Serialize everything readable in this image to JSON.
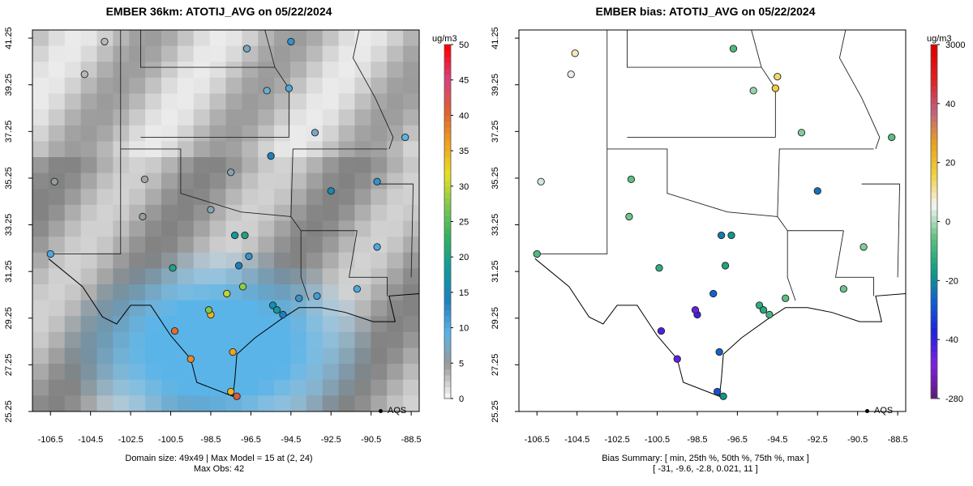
{
  "left_panel": {
    "title": "EMBER 36km: ATOTIJ_AVG on 05/22/2024",
    "footer_line1": "Domain size: 49x49 | Max Model = 15 at (2, 24)",
    "footer_line2": "Max Obs: 42",
    "legend_label": "AQS",
    "colorbar": {
      "unit": "ug/m3",
      "labels": [
        "0",
        "5",
        "10",
        "15",
        "20",
        "25",
        "30",
        "35",
        "40",
        "45",
        "50"
      ],
      "colors": [
        "#f2f2f2",
        "#9a9a9a",
        "#5ab4e8",
        "#1c7fc0",
        "#0e9aa0",
        "#31b060",
        "#7ec850",
        "#e8e020",
        "#f0a020",
        "#e06030",
        "#d84080",
        "#ff0000"
      ]
    }
  },
  "right_panel": {
    "title": "EMBER bias: ATOTIJ_AVG on 05/22/2024",
    "footer_line1": "Bias Summary: [ min, 25th %, 50th %, 75th %, max ]",
    "footer_line2": "[ -31,   -9.6,   -2.8,   0.021,   11 ]",
    "legend_label": "AQS",
    "colorbar": {
      "unit": "ug/m3",
      "labels": [
        "3000",
        "40",
        "20",
        "0",
        "-20",
        "-40",
        "-280"
      ],
      "colors": [
        "#e00000",
        "#e02020",
        "#c06080",
        "#e8a020",
        "#f0d040",
        "#f4f4f4",
        "#60c080",
        "#10a080",
        "#1060d0",
        "#2020e0",
        "#8020e0",
        "#601880"
      ]
    }
  },
  "axes": {
    "x_ticks": [
      "-106.5",
      "-104.5",
      "-102.5",
      "-100.5",
      "-98.5",
      "-96.5",
      "-94.5",
      "-92.5",
      "-90.5",
      "-88.5"
    ],
    "y_ticks": [
      "41.25",
      "39.25",
      "37.25",
      "35.25",
      "33.25",
      "31.25",
      "29.25",
      "27.25",
      "25.25"
    ]
  },
  "chart_data": [
    {
      "type": "heatmap",
      "title": "EMBER 36km: ATOTIJ_AVG on 05/22/2024",
      "unit": "ug/m3",
      "xlim": [
        -107.4,
        -88.1
      ],
      "ylim": [
        25.25,
        41.6
      ],
      "value_range": [
        0,
        50
      ],
      "domain_size": "49x49",
      "max_model": 15,
      "max_obs": 42,
      "stations": [
        {
          "lon": -106.3,
          "lat": 35.1,
          "value": 5
        },
        {
          "lon": -106.5,
          "lat": 32.0,
          "value": 10
        },
        {
          "lon": -104.8,
          "lat": 39.7,
          "value": 3
        },
        {
          "lon": -103.8,
          "lat": 41.1,
          "value": 3
        },
        {
          "lon": -101.8,
          "lat": 35.2,
          "value": 4
        },
        {
          "lon": -101.9,
          "lat": 33.6,
          "value": 5
        },
        {
          "lon": -100.4,
          "lat": 31.4,
          "value": 20
        },
        {
          "lon": -98.5,
          "lat": 33.9,
          "value": 6
        },
        {
          "lon": -97.5,
          "lat": 35.5,
          "value": 6
        },
        {
          "lon": -97.3,
          "lat": 32.8,
          "value": 18
        },
        {
          "lon": -96.8,
          "lat": 32.8,
          "value": 20
        },
        {
          "lon": -97.1,
          "lat": 31.5,
          "value": 14
        },
        {
          "lon": -96.6,
          "lat": 31.9,
          "value": 12
        },
        {
          "lon": -96.9,
          "lat": 30.6,
          "value": 28
        },
        {
          "lon": -97.7,
          "lat": 30.3,
          "value": 30
        },
        {
          "lon": -98.5,
          "lat": 29.4,
          "value": 35
        },
        {
          "lon": -98.6,
          "lat": 29.6,
          "value": 27
        },
        {
          "lon": -99.5,
          "lat": 27.5,
          "value": 38
        },
        {
          "lon": -100.3,
          "lat": 28.7,
          "value": 40
        },
        {
          "lon": -97.4,
          "lat": 27.8,
          "value": 36
        },
        {
          "lon": -97.5,
          "lat": 26.1,
          "value": 35
        },
        {
          "lon": -97.2,
          "lat": 25.9,
          "value": 42
        },
        {
          "lon": -95.4,
          "lat": 29.8,
          "value": 16
        },
        {
          "lon": -95.2,
          "lat": 29.6,
          "value": 18
        },
        {
          "lon": -94.9,
          "lat": 29.4,
          "value": 14
        },
        {
          "lon": -94.1,
          "lat": 30.1,
          "value": 12
        },
        {
          "lon": -93.2,
          "lat": 30.2,
          "value": 11
        },
        {
          "lon": -92.5,
          "lat": 34.7,
          "value": 15
        },
        {
          "lon": -90.2,
          "lat": 35.1,
          "value": 12
        },
        {
          "lon": -90.2,
          "lat": 32.3,
          "value": 10
        },
        {
          "lon": -91.2,
          "lat": 30.5,
          "value": 10
        },
        {
          "lon": -94.6,
          "lat": 39.1,
          "value": 10
        },
        {
          "lon": -95.7,
          "lat": 39.0,
          "value": 8
        },
        {
          "lon": -88.8,
          "lat": 37.0,
          "value": 9
        },
        {
          "lon": -95.5,
          "lat": 36.2,
          "value": 14
        },
        {
          "lon": -93.3,
          "lat": 37.2,
          "value": 7
        },
        {
          "lon": -96.7,
          "lat": 40.8,
          "value": 7
        },
        {
          "lon": -94.5,
          "lat": 41.1,
          "value": 12
        }
      ]
    },
    {
      "type": "scatter",
      "title": "EMBER bias: ATOTIJ_AVG on 05/22/2024",
      "unit": "ug/m3",
      "xlim": [
        -107.4,
        -88.1
      ],
      "ylim": [
        25.25,
        41.6
      ],
      "bias_summary": {
        "min": -31,
        "p25": -9.6,
        "p50": -2.8,
        "p75": 0.021,
        "max": 11
      },
      "stations": [
        {
          "lon": -106.3,
          "lat": 35.1,
          "bias": 2
        },
        {
          "lon": -106.5,
          "lat": 32.0,
          "bias": -5
        },
        {
          "lon": -104.8,
          "lat": 39.7,
          "bias": 3
        },
        {
          "lon": -104.6,
          "lat": 40.6,
          "bias": 6
        },
        {
          "lon": -101.8,
          "lat": 35.2,
          "bias": -4
        },
        {
          "lon": -101.9,
          "lat": 33.6,
          "bias": -3
        },
        {
          "lon": -100.4,
          "lat": 31.4,
          "bias": -8
        },
        {
          "lon": -97.3,
          "lat": 32.8,
          "bias": -15
        },
        {
          "lon": -96.8,
          "lat": 32.8,
          "bias": -12
        },
        {
          "lon": -97.1,
          "lat": 31.5,
          "bias": -10
        },
        {
          "lon": -97.7,
          "lat": 30.3,
          "bias": -18
        },
        {
          "lon": -98.5,
          "lat": 29.4,
          "bias": -28
        },
        {
          "lon": -98.6,
          "lat": 29.6,
          "bias": -31
        },
        {
          "lon": -99.5,
          "lat": 27.5,
          "bias": -30
        },
        {
          "lon": -100.3,
          "lat": 28.7,
          "bias": -29
        },
        {
          "lon": -97.4,
          "lat": 27.8,
          "bias": -18
        },
        {
          "lon": -97.5,
          "lat": 26.1,
          "bias": -20
        },
        {
          "lon": -97.2,
          "lat": 25.9,
          "bias": -12
        },
        {
          "lon": -95.4,
          "lat": 29.8,
          "bias": -8
        },
        {
          "lon": -95.2,
          "lat": 29.6,
          "bias": -9
        },
        {
          "lon": -94.9,
          "lat": 29.4,
          "bias": -6
        },
        {
          "lon": -94.1,
          "lat": 30.1,
          "bias": -4
        },
        {
          "lon": -92.5,
          "lat": 34.7,
          "bias": -16
        },
        {
          "lon": -94.6,
          "lat": 39.1,
          "bias": 11
        },
        {
          "lon": -94.5,
          "lat": 39.6,
          "bias": 9
        },
        {
          "lon": -95.7,
          "lat": 39.0,
          "bias": -1
        },
        {
          "lon": -88.8,
          "lat": 37.0,
          "bias": -4
        },
        {
          "lon": -90.2,
          "lat": 32.3,
          "bias": -2
        },
        {
          "lon": -91.2,
          "lat": 30.5,
          "bias": -3
        },
        {
          "lon": -96.7,
          "lat": 40.8,
          "bias": -5
        },
        {
          "lon": -93.3,
          "lat": 37.2,
          "bias": -2
        }
      ]
    }
  ]
}
